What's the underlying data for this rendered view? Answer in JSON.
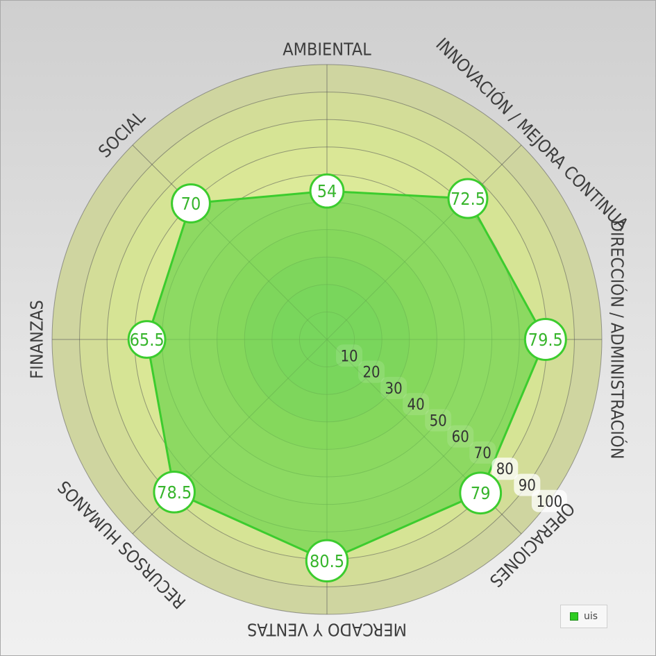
{
  "chart_data": {
    "type": "radar",
    "axes": [
      "AMBIENTAL",
      "INNOVACIÓN / MEJORA CONTINUA",
      "DIRECCIÓN / ADMINISTRACIÓN",
      "OPERACIONES",
      "MERCADO Y VENTAS",
      "RECURSOS HUMANOS",
      "FINANZAS",
      "SOCIAL"
    ],
    "series": [
      {
        "name": "uis",
        "values": [
          54,
          72.5,
          79.5,
          79,
          80.5,
          78.5,
          65.5,
          70
        ],
        "labels": [
          "54",
          "72.5",
          "79.5",
          "79",
          "80.5",
          "78.5",
          "65.5",
          "70"
        ]
      }
    ],
    "radial_ticks": [
      10,
      20,
      30,
      40,
      50,
      60,
      70,
      80,
      90,
      100
    ],
    "radial_tick_labels": [
      "10",
      "20",
      "30",
      "40",
      "50",
      "60",
      "70",
      "80",
      "90",
      "100"
    ],
    "rlim": [
      0,
      100
    ],
    "grid": true,
    "legend_position": "bottom-right",
    "colors": {
      "series_line": "#3ccc2e",
      "series_fill": "#6fd44e",
      "point_border": "#3ccc2e",
      "point_label": "#37b52c",
      "grid_line": "#555555"
    }
  },
  "legend": {
    "label": "uis"
  }
}
